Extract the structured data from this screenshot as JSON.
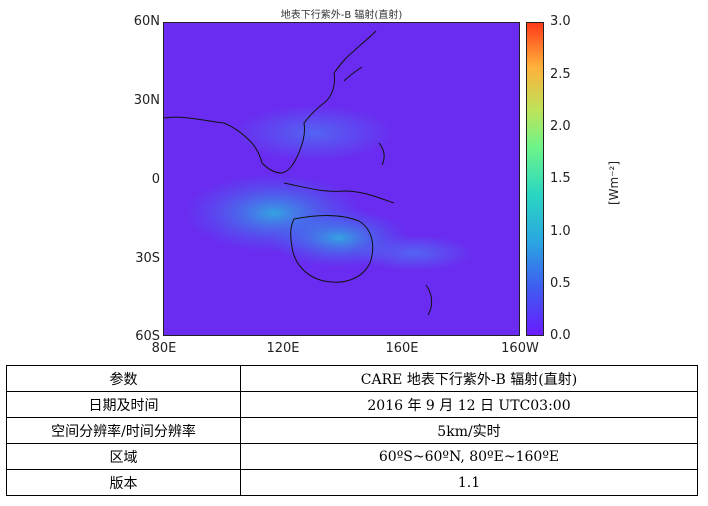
{
  "chart_data": {
    "type": "heatmap",
    "title": "地表下行紫外-B 辐射(直射)",
    "x_ticks": [
      "80E",
      "120E",
      "160E",
      "160W"
    ],
    "y_ticks": [
      "60N",
      "30N",
      "0",
      "30S",
      "60S"
    ],
    "xlim": [
      80,
      200
    ],
    "ylim": [
      -60,
      60
    ],
    "colorbar": {
      "label": "[Wm⁻²]",
      "range": [
        0.0,
        3.0
      ],
      "ticks": [
        "0.0",
        "0.5",
        "1.0",
        "1.5",
        "2.0",
        "2.5",
        "3.0"
      ],
      "colormap": "rainbow"
    }
  },
  "table": {
    "rows": [
      {
        "key": "参数",
        "value": "CARE 地表下行紫外-B 辐射(直射)"
      },
      {
        "key": "日期及时间",
        "value": "2016 年 9 月 12 日 UTC03:00"
      },
      {
        "key": "空间分辨率/时间分辨率",
        "value": "5km/实时"
      },
      {
        "key": "区域",
        "value": "60ºS~60ºN, 80ºE~160ºE"
      },
      {
        "key": "版本",
        "value": "1.1"
      }
    ]
  }
}
